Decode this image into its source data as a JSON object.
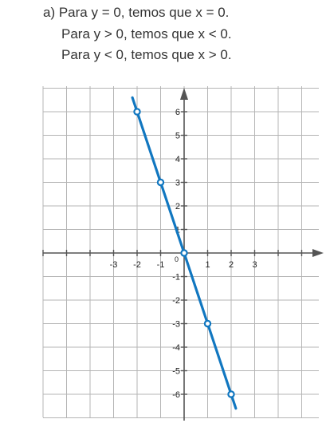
{
  "text": {
    "line1": "a) Para y = 0, temos que x = 0.",
    "line2": "Para y > 0, temos que x < 0.",
    "line3": "Para y < 0, temos que x > 0."
  },
  "colors": {
    "grid": "#b5b5b5",
    "axis": "#555555",
    "line": "#1177c0",
    "point_fill": "#ffffff"
  },
  "chart_data": {
    "type": "line",
    "title": "",
    "xlabel": "",
    "ylabel": "",
    "xlim": [
      -6,
      6
    ],
    "ylim": [
      -7,
      7
    ],
    "grid": true,
    "legend": "none",
    "x_ticks": [
      -3,
      -2,
      -1,
      1,
      2,
      3
    ],
    "y_ticks": [
      -6,
      -5,
      -4,
      -3,
      -2,
      -1,
      1,
      2,
      3,
      4,
      5,
      6
    ],
    "origin_label": "0",
    "line_extent": {
      "x": [
        -2.2,
        2.2
      ],
      "y": [
        6.6,
        -6.6
      ]
    },
    "series": [
      {
        "x": [
          -2,
          -1,
          0,
          1,
          2
        ],
        "y": [
          6,
          3,
          0,
          -3,
          -6
        ]
      }
    ]
  }
}
